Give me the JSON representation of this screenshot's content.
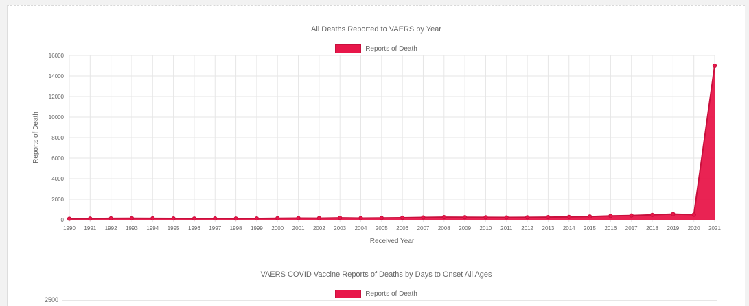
{
  "charts": [
    {
      "title": "All Deaths Reported to VAERS by Year",
      "legend_label": "Reports of Death"
    },
    {
      "title": "VAERS COVID Vaccine Reports of Deaths by Days to Onset All Ages",
      "legend_label": "Reports of Death",
      "first_tick": "2500"
    }
  ],
  "colors": {
    "series": "#e8174a",
    "grid": "#e6e6e6",
    "text": "#666666"
  },
  "chart_data": [
    {
      "type": "area",
      "title": "All Deaths Reported to VAERS by Year",
      "xlabel": "Received Year",
      "ylabel": "Reports of Death",
      "ylim": [
        0,
        16000
      ],
      "yticks": [
        0,
        2000,
        4000,
        6000,
        8000,
        10000,
        12000,
        14000,
        16000
      ],
      "grid": true,
      "legend": "top-center",
      "categories": [
        "1990",
        "1991",
        "1992",
        "1993",
        "1994",
        "1995",
        "1996",
        "1997",
        "1998",
        "1999",
        "2000",
        "2001",
        "2002",
        "2003",
        "2004",
        "2005",
        "2006",
        "2007",
        "2008",
        "2009",
        "2010",
        "2011",
        "2012",
        "2013",
        "2014",
        "2015",
        "2016",
        "2017",
        "2018",
        "2019",
        "2020",
        "2021"
      ],
      "series": [
        {
          "name": "Reports of Death",
          "values": [
            100,
            120,
            140,
            150,
            140,
            130,
            120,
            130,
            120,
            130,
            150,
            170,
            160,
            190,
            170,
            180,
            200,
            230,
            260,
            250,
            240,
            230,
            240,
            260,
            280,
            320,
            380,
            420,
            480,
            560,
            500,
            15000
          ]
        }
      ]
    }
  ]
}
